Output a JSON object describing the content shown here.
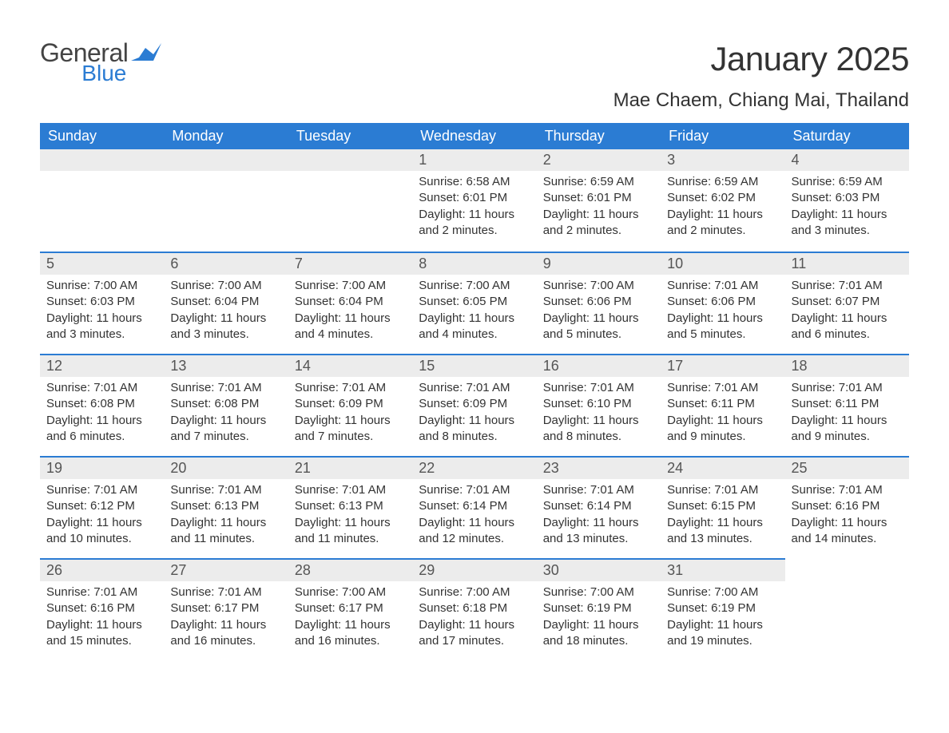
{
  "brand": {
    "word1": "General",
    "word2": "Blue",
    "flag_color": "#2b7cd3"
  },
  "title": "January 2025",
  "location": "Mae Chaem, Chiang Mai, Thailand",
  "colors": {
    "header_bg": "#2b7cd3",
    "header_text": "#ffffff",
    "daynum_bg": "#ececec",
    "daynum_border": "#2b7cd3",
    "body_text": "#333333"
  },
  "layout": {
    "columns": 7,
    "first_day_column_index": 3
  },
  "weekdays": [
    "Sunday",
    "Monday",
    "Tuesday",
    "Wednesday",
    "Thursday",
    "Friday",
    "Saturday"
  ],
  "days": [
    {
      "n": 1,
      "sunrise": "6:58 AM",
      "sunset": "6:01 PM",
      "daylight": "11 hours and 2 minutes."
    },
    {
      "n": 2,
      "sunrise": "6:59 AM",
      "sunset": "6:01 PM",
      "daylight": "11 hours and 2 minutes."
    },
    {
      "n": 3,
      "sunrise": "6:59 AM",
      "sunset": "6:02 PM",
      "daylight": "11 hours and 2 minutes."
    },
    {
      "n": 4,
      "sunrise": "6:59 AM",
      "sunset": "6:03 PM",
      "daylight": "11 hours and 3 minutes."
    },
    {
      "n": 5,
      "sunrise": "7:00 AM",
      "sunset": "6:03 PM",
      "daylight": "11 hours and 3 minutes."
    },
    {
      "n": 6,
      "sunrise": "7:00 AM",
      "sunset": "6:04 PM",
      "daylight": "11 hours and 3 minutes."
    },
    {
      "n": 7,
      "sunrise": "7:00 AM",
      "sunset": "6:04 PM",
      "daylight": "11 hours and 4 minutes."
    },
    {
      "n": 8,
      "sunrise": "7:00 AM",
      "sunset": "6:05 PM",
      "daylight": "11 hours and 4 minutes."
    },
    {
      "n": 9,
      "sunrise": "7:00 AM",
      "sunset": "6:06 PM",
      "daylight": "11 hours and 5 minutes."
    },
    {
      "n": 10,
      "sunrise": "7:01 AM",
      "sunset": "6:06 PM",
      "daylight": "11 hours and 5 minutes."
    },
    {
      "n": 11,
      "sunrise": "7:01 AM",
      "sunset": "6:07 PM",
      "daylight": "11 hours and 6 minutes."
    },
    {
      "n": 12,
      "sunrise": "7:01 AM",
      "sunset": "6:08 PM",
      "daylight": "11 hours and 6 minutes."
    },
    {
      "n": 13,
      "sunrise": "7:01 AM",
      "sunset": "6:08 PM",
      "daylight": "11 hours and 7 minutes."
    },
    {
      "n": 14,
      "sunrise": "7:01 AM",
      "sunset": "6:09 PM",
      "daylight": "11 hours and 7 minutes."
    },
    {
      "n": 15,
      "sunrise": "7:01 AM",
      "sunset": "6:09 PM",
      "daylight": "11 hours and 8 minutes."
    },
    {
      "n": 16,
      "sunrise": "7:01 AM",
      "sunset": "6:10 PM",
      "daylight": "11 hours and 8 minutes."
    },
    {
      "n": 17,
      "sunrise": "7:01 AM",
      "sunset": "6:11 PM",
      "daylight": "11 hours and 9 minutes."
    },
    {
      "n": 18,
      "sunrise": "7:01 AM",
      "sunset": "6:11 PM",
      "daylight": "11 hours and 9 minutes."
    },
    {
      "n": 19,
      "sunrise": "7:01 AM",
      "sunset": "6:12 PM",
      "daylight": "11 hours and 10 minutes."
    },
    {
      "n": 20,
      "sunrise": "7:01 AM",
      "sunset": "6:13 PM",
      "daylight": "11 hours and 11 minutes."
    },
    {
      "n": 21,
      "sunrise": "7:01 AM",
      "sunset": "6:13 PM",
      "daylight": "11 hours and 11 minutes."
    },
    {
      "n": 22,
      "sunrise": "7:01 AM",
      "sunset": "6:14 PM",
      "daylight": "11 hours and 12 minutes."
    },
    {
      "n": 23,
      "sunrise": "7:01 AM",
      "sunset": "6:14 PM",
      "daylight": "11 hours and 13 minutes."
    },
    {
      "n": 24,
      "sunrise": "7:01 AM",
      "sunset": "6:15 PM",
      "daylight": "11 hours and 13 minutes."
    },
    {
      "n": 25,
      "sunrise": "7:01 AM",
      "sunset": "6:16 PM",
      "daylight": "11 hours and 14 minutes."
    },
    {
      "n": 26,
      "sunrise": "7:01 AM",
      "sunset": "6:16 PM",
      "daylight": "11 hours and 15 minutes."
    },
    {
      "n": 27,
      "sunrise": "7:01 AM",
      "sunset": "6:17 PM",
      "daylight": "11 hours and 16 minutes."
    },
    {
      "n": 28,
      "sunrise": "7:00 AM",
      "sunset": "6:17 PM",
      "daylight": "11 hours and 16 minutes."
    },
    {
      "n": 29,
      "sunrise": "7:00 AM",
      "sunset": "6:18 PM",
      "daylight": "11 hours and 17 minutes."
    },
    {
      "n": 30,
      "sunrise": "7:00 AM",
      "sunset": "6:19 PM",
      "daylight": "11 hours and 18 minutes."
    },
    {
      "n": 31,
      "sunrise": "7:00 AM",
      "sunset": "6:19 PM",
      "daylight": "11 hours and 19 minutes."
    }
  ],
  "labels": {
    "sunrise": "Sunrise:",
    "sunset": "Sunset:",
    "daylight": "Daylight:"
  }
}
